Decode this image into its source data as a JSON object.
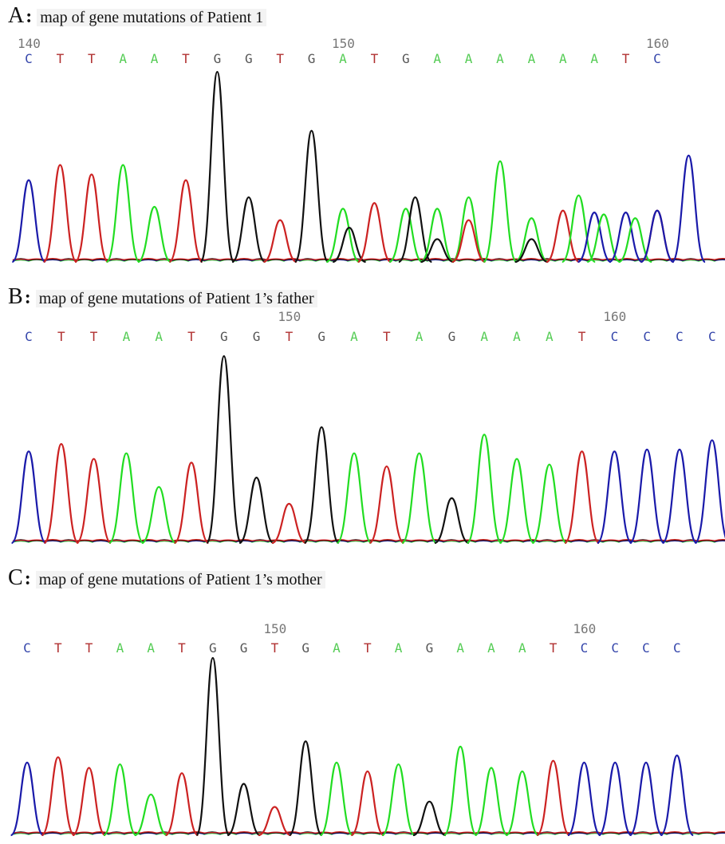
{
  "colors": {
    "A": "#22dd22",
    "C": "#1a1aaa",
    "G": "#111111",
    "T": "#cc2222",
    "A_text": "#55cc55",
    "C_text": "#3344aa",
    "G_text": "#555555",
    "T_text": "#b03030"
  },
  "chart_data": [
    {
      "type": "line",
      "letter": "A",
      "caption": "map of gene mutations of Patient 1",
      "positions": [
        140,
        150,
        160
      ],
      "bases": [
        "C",
        "T",
        "T",
        "A",
        "A",
        "T",
        "G",
        "G",
        "T",
        "G",
        "A",
        "T",
        "G",
        "A",
        "A",
        "A",
        "A",
        "A",
        "A",
        "T",
        "C"
      ],
      "peaks": [
        {
          "base": "C",
          "x": 0,
          "h": 0.43
        },
        {
          "base": "T",
          "x": 1,
          "h": 0.51
        },
        {
          "base": "T",
          "x": 2,
          "h": 0.46
        },
        {
          "base": "A",
          "x": 3,
          "h": 0.51
        },
        {
          "base": "A",
          "x": 4,
          "h": 0.29
        },
        {
          "base": "T",
          "x": 5,
          "h": 0.43
        },
        {
          "base": "G",
          "x": 6,
          "h": 1.0
        },
        {
          "base": "G",
          "x": 7,
          "h": 0.34
        },
        {
          "base": "T",
          "x": 8,
          "h": 0.22
        },
        {
          "base": "G",
          "x": 9,
          "h": 0.69
        },
        {
          "base": "A",
          "x": 10,
          "h": 0.28
        },
        {
          "base": "G",
          "x": 10.2,
          "h": 0.18
        },
        {
          "base": "T",
          "x": 11,
          "h": 0.31
        },
        {
          "base": "A",
          "x": 12,
          "h": 0.28
        },
        {
          "base": "G",
          "x": 12.3,
          "h": 0.34
        },
        {
          "base": "A",
          "x": 13,
          "h": 0.28
        },
        {
          "base": "G",
          "x": 13,
          "h": 0.12
        },
        {
          "base": "A",
          "x": 14,
          "h": 0.34
        },
        {
          "base": "T",
          "x": 14,
          "h": 0.22
        },
        {
          "base": "A",
          "x": 15,
          "h": 0.53
        },
        {
          "base": "A",
          "x": 16,
          "h": 0.23
        },
        {
          "base": "G",
          "x": 16,
          "h": 0.12
        },
        {
          "base": "T",
          "x": 17,
          "h": 0.27
        },
        {
          "base": "A",
          "x": 17.5,
          "h": 0.35
        },
        {
          "base": "C",
          "x": 18,
          "h": 0.26
        },
        {
          "base": "A",
          "x": 18.3,
          "h": 0.25
        },
        {
          "base": "C",
          "x": 19,
          "h": 0.26
        },
        {
          "base": "A",
          "x": 19.3,
          "h": 0.23
        },
        {
          "base": "T",
          "x": 20,
          "h": 0.27
        },
        {
          "base": "C",
          "x": 20,
          "h": 0.27
        },
        {
          "base": "C",
          "x": 21,
          "h": 0.56
        }
      ]
    },
    {
      "type": "line",
      "letter": "B",
      "caption": "map of gene mutations of Patient 1’s father",
      "positions": [
        150,
        160
      ],
      "bases": [
        "C",
        "T",
        "T",
        "A",
        "A",
        "T",
        "G",
        "G",
        "T",
        "G",
        "A",
        "T",
        "A",
        "G",
        "A",
        "A",
        "A",
        "T",
        "C",
        "C",
        "C",
        "C"
      ],
      "peaks": [
        {
          "base": "C",
          "x": 0,
          "h": 0.49
        },
        {
          "base": "T",
          "x": 1,
          "h": 0.53
        },
        {
          "base": "T",
          "x": 2,
          "h": 0.45
        },
        {
          "base": "A",
          "x": 3,
          "h": 0.48
        },
        {
          "base": "A",
          "x": 4,
          "h": 0.3
        },
        {
          "base": "T",
          "x": 5,
          "h": 0.43
        },
        {
          "base": "G",
          "x": 6,
          "h": 1.0
        },
        {
          "base": "G",
          "x": 7,
          "h": 0.35
        },
        {
          "base": "T",
          "x": 8,
          "h": 0.21
        },
        {
          "base": "G",
          "x": 9,
          "h": 0.62
        },
        {
          "base": "A",
          "x": 10,
          "h": 0.48
        },
        {
          "base": "T",
          "x": 11,
          "h": 0.41
        },
        {
          "base": "A",
          "x": 12,
          "h": 0.48
        },
        {
          "base": "G",
          "x": 13,
          "h": 0.24
        },
        {
          "base": "A",
          "x": 14,
          "h": 0.58
        },
        {
          "base": "A",
          "x": 15,
          "h": 0.45
        },
        {
          "base": "A",
          "x": 16,
          "h": 0.42
        },
        {
          "base": "T",
          "x": 17,
          "h": 0.49
        },
        {
          "base": "C",
          "x": 18,
          "h": 0.49
        },
        {
          "base": "C",
          "x": 19,
          "h": 0.5
        },
        {
          "base": "C",
          "x": 20,
          "h": 0.5
        },
        {
          "base": "C",
          "x": 21,
          "h": 0.55
        }
      ]
    },
    {
      "type": "line",
      "letter": "C",
      "caption": "map of gene mutations of Patient 1’s mother",
      "positions": [
        150,
        160
      ],
      "bases": [
        "C",
        "T",
        "T",
        "A",
        "A",
        "T",
        "G",
        "G",
        "T",
        "G",
        "A",
        "T",
        "A",
        "G",
        "A",
        "A",
        "A",
        "T",
        "C",
        "C",
        "C",
        "C"
      ],
      "peaks": [
        {
          "base": "C",
          "x": 0,
          "h": 0.41
        },
        {
          "base": "T",
          "x": 1,
          "h": 0.44
        },
        {
          "base": "T",
          "x": 2,
          "h": 0.38
        },
        {
          "base": "A",
          "x": 3,
          "h": 0.4
        },
        {
          "base": "A",
          "x": 4,
          "h": 0.23
        },
        {
          "base": "T",
          "x": 5,
          "h": 0.35
        },
        {
          "base": "G",
          "x": 6,
          "h": 1.0
        },
        {
          "base": "G",
          "x": 7,
          "h": 0.29
        },
        {
          "base": "T",
          "x": 8,
          "h": 0.16
        },
        {
          "base": "G",
          "x": 9,
          "h": 0.53
        },
        {
          "base": "A",
          "x": 10,
          "h": 0.41
        },
        {
          "base": "T",
          "x": 11,
          "h": 0.36
        },
        {
          "base": "A",
          "x": 12,
          "h": 0.4
        },
        {
          "base": "G",
          "x": 13,
          "h": 0.19
        },
        {
          "base": "A",
          "x": 14,
          "h": 0.5
        },
        {
          "base": "A",
          "x": 15,
          "h": 0.38
        },
        {
          "base": "A",
          "x": 16,
          "h": 0.36
        },
        {
          "base": "T",
          "x": 17,
          "h": 0.42
        },
        {
          "base": "C",
          "x": 18,
          "h": 0.41
        },
        {
          "base": "C",
          "x": 19,
          "h": 0.41
        },
        {
          "base": "C",
          "x": 20,
          "h": 0.41
        },
        {
          "base": "C",
          "x": 21,
          "h": 0.45
        }
      ]
    }
  ]
}
